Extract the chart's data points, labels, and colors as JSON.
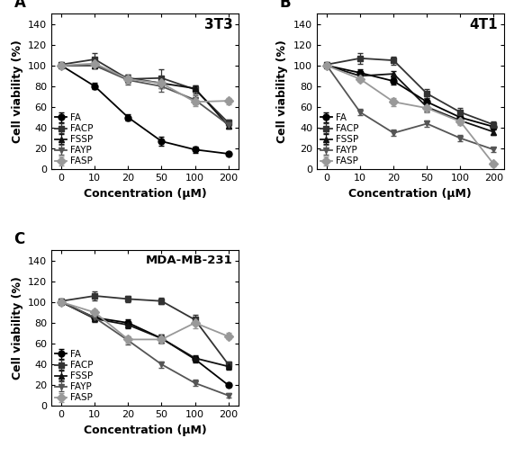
{
  "x_positions": [
    0,
    1,
    2,
    3,
    4,
    5
  ],
  "x_labels": [
    "0",
    "10",
    "20",
    "50",
    "100",
    "200"
  ],
  "panels": [
    {
      "label": "A",
      "title": "3T3",
      "series": {
        "FA": {
          "y": [
            100,
            80,
            50,
            27,
            19,
            15
          ],
          "yerr": [
            2,
            3,
            3,
            4,
            3,
            2
          ],
          "marker": "o",
          "color": "#000000"
        },
        "FACP": {
          "y": [
            101,
            106,
            87,
            88,
            77,
            45
          ],
          "yerr": [
            2,
            6,
            4,
            8,
            4,
            3
          ],
          "marker": "s",
          "color": "#333333"
        },
        "FSSP": {
          "y": [
            100,
            100,
            88,
            83,
            78,
            42
          ],
          "yerr": [
            2,
            3,
            3,
            5,
            3,
            3
          ],
          "marker": "^",
          "color": "#111111"
        },
        "FAYP": {
          "y": [
            100,
            100,
            86,
            80,
            67,
            43
          ],
          "yerr": [
            2,
            3,
            4,
            5,
            4,
            3
          ],
          "marker": "v",
          "color": "#555555"
        },
        "FASP": {
          "y": [
            100,
            102,
            87,
            83,
            65,
            66
          ],
          "yerr": [
            2,
            3,
            3,
            5,
            4,
            3
          ],
          "marker": "D",
          "color": "#999999"
        }
      }
    },
    {
      "label": "B",
      "title": "4T1",
      "series": {
        "FA": {
          "y": [
            100,
            93,
            85,
            65,
            50,
            41
          ],
          "yerr": [
            2,
            3,
            3,
            4,
            3,
            3
          ],
          "marker": "o",
          "color": "#000000"
        },
        "FACP": {
          "y": [
            101,
            107,
            105,
            73,
            55,
            43
          ],
          "yerr": [
            2,
            5,
            4,
            4,
            4,
            3
          ],
          "marker": "s",
          "color": "#333333"
        },
        "FSSP": {
          "y": [
            100,
            90,
            92,
            60,
            47,
            36
          ],
          "yerr": [
            2,
            3,
            3,
            4,
            3,
            3
          ],
          "marker": "^",
          "color": "#111111"
        },
        "FAYP": {
          "y": [
            100,
            55,
            35,
            44,
            30,
            19
          ],
          "yerr": [
            2,
            3,
            3,
            3,
            3,
            2
          ],
          "marker": "v",
          "color": "#555555"
        },
        "FASP": {
          "y": [
            100,
            87,
            65,
            59,
            46,
            5
          ],
          "yerr": [
            2,
            3,
            4,
            4,
            3,
            2
          ],
          "marker": "D",
          "color": "#999999"
        }
      }
    },
    {
      "label": "C",
      "title": "MDA-MB-231",
      "series": {
        "FA": {
          "y": [
            100,
            85,
            80,
            65,
            45,
            20
          ],
          "yerr": [
            2,
            3,
            3,
            4,
            3,
            2
          ],
          "marker": "o",
          "color": "#000000"
        },
        "FACP": {
          "y": [
            101,
            106,
            103,
            101,
            83,
            40
          ],
          "yerr": [
            2,
            4,
            3,
            3,
            5,
            3
          ],
          "marker": "s",
          "color": "#333333"
        },
        "FSSP": {
          "y": [
            100,
            84,
            78,
            65,
            46,
            38
          ],
          "yerr": [
            2,
            3,
            3,
            4,
            3,
            3
          ],
          "marker": "^",
          "color": "#111111"
        },
        "FAYP": {
          "y": [
            100,
            85,
            63,
            40,
            22,
            10
          ],
          "yerr": [
            2,
            3,
            4,
            3,
            3,
            2
          ],
          "marker": "v",
          "color": "#555555"
        },
        "FASP": {
          "y": [
            100,
            90,
            64,
            64,
            80,
            67
          ],
          "yerr": [
            2,
            3,
            3,
            4,
            5,
            3
          ],
          "marker": "D",
          "color": "#999999"
        }
      }
    }
  ],
  "xlabel": "Concentration (μM)",
  "ylabel": "Cell viability (%)",
  "xlim": [
    -0.3,
    5.3
  ],
  "ylim": [
    0,
    150
  ],
  "yticks": [
    0,
    20,
    40,
    60,
    80,
    100,
    120,
    140
  ],
  "legend_order": [
    "FA",
    "FACP",
    "FSSP",
    "FAYP",
    "FASP"
  ],
  "background_color": "#ffffff",
  "markersize": 5,
  "linewidth": 1.3,
  "capsize": 2,
  "elinewidth": 0.9
}
